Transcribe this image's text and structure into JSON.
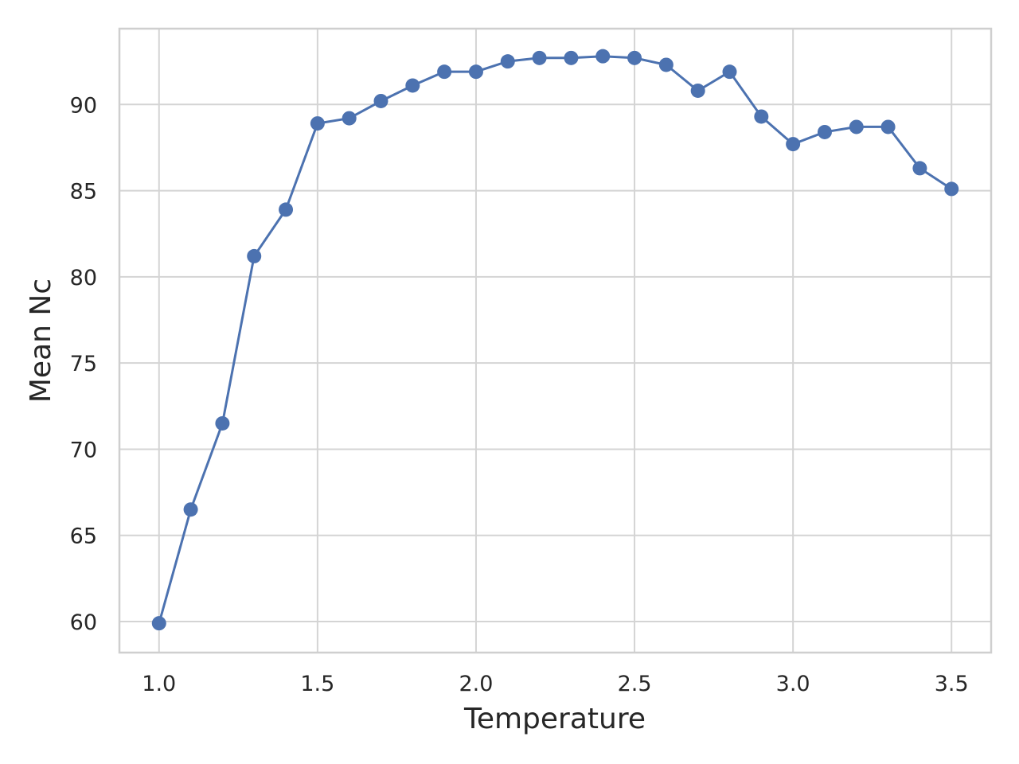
{
  "chart_data": {
    "type": "line",
    "title": "",
    "xlabel": "Temperature",
    "ylabel": "Mean Nc",
    "xlim": [
      0.875,
      3.625
    ],
    "ylim": [
      58.2,
      94.4
    ],
    "x_ticks": [
      1.0,
      1.5,
      2.0,
      2.5,
      3.0,
      3.5
    ],
    "x_tick_labels": [
      "1.0",
      "1.5",
      "2.0",
      "2.5",
      "3.0",
      "3.5"
    ],
    "y_ticks": [
      60,
      65,
      70,
      75,
      80,
      85,
      90
    ],
    "y_tick_labels": [
      "60",
      "65",
      "70",
      "75",
      "80",
      "85",
      "90"
    ],
    "grid": true,
    "legend": "none",
    "series": [
      {
        "color": "#4c72b0",
        "marker": "circle",
        "x": [
          1.0,
          1.1,
          1.2,
          1.3,
          1.4,
          1.5,
          1.6,
          1.7,
          1.8,
          1.9,
          2.0,
          2.1,
          2.2,
          2.3,
          2.4,
          2.5,
          2.6,
          2.7,
          2.8,
          2.9,
          3.0,
          3.1,
          3.2,
          3.3,
          3.4,
          3.5
        ],
        "y": [
          59.9,
          66.5,
          71.5,
          81.2,
          83.9,
          88.9,
          89.2,
          90.2,
          91.1,
          91.9,
          91.9,
          92.5,
          92.7,
          92.7,
          92.8,
          92.7,
          92.3,
          90.8,
          91.9,
          89.3,
          87.7,
          88.4,
          88.7,
          88.7,
          86.3,
          85.1
        ]
      }
    ]
  }
}
